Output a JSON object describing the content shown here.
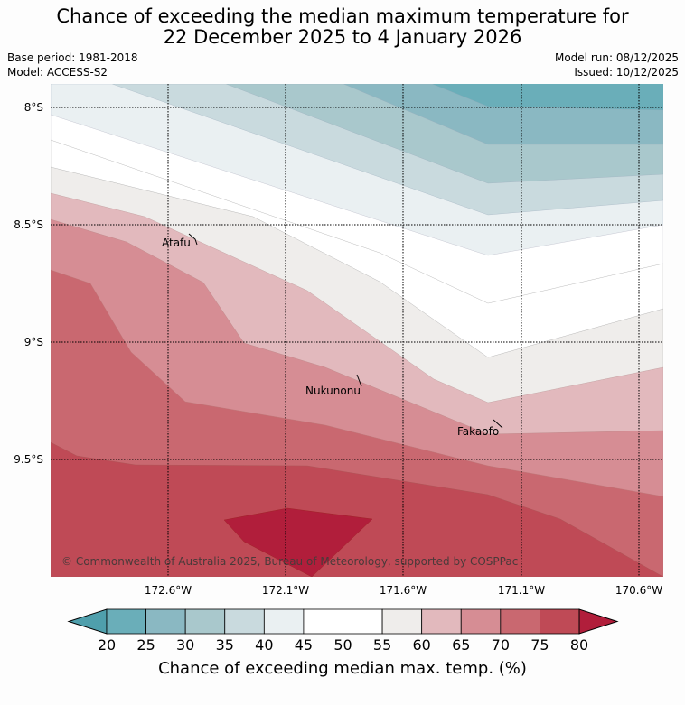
{
  "header": {
    "title_line1": "Chance of exceeding the median maximum temperature for",
    "title_line2": "22 December 2025 to 4 January 2026",
    "base_period": "Base period: 1981-2018",
    "model": "Model: ACCESS-S2",
    "model_run": "Model run: 08/12/2025",
    "issued": "Issued: 10/12/2025"
  },
  "map": {
    "lat_labels": [
      "8°S",
      "8.5°S",
      "9°S",
      "9.5°S"
    ],
    "lon_labels": [
      "172.6°W",
      "172.1°W",
      "171.6°W",
      "171.1°W",
      "170.6°W"
    ],
    "places": [
      {
        "name": "Atafu"
      },
      {
        "name": "Nukunonu"
      },
      {
        "name": "Fakaofo"
      }
    ],
    "copyright": "© Commonwealth of Australia 2025, Bureau of Meteorology, supported by COSPPac"
  },
  "colorbar": {
    "ticks": [
      "20",
      "25",
      "30",
      "35",
      "40",
      "45",
      "50",
      "55",
      "60",
      "65",
      "70",
      "75",
      "80"
    ],
    "colors": [
      "#6aaeb9",
      "#8ab8c2",
      "#a9c8cc",
      "#c9dade",
      "#eaf0f2",
      "#ffffff",
      "#ffffff",
      "#efedeb",
      "#e2b9bd",
      "#d68d94",
      "#c96870",
      "#bf4a56"
    ],
    "under_color": "#4f9fac",
    "over_color": "#b11e3b",
    "label": "Chance of exceeding median max. temp. (%)"
  }
}
